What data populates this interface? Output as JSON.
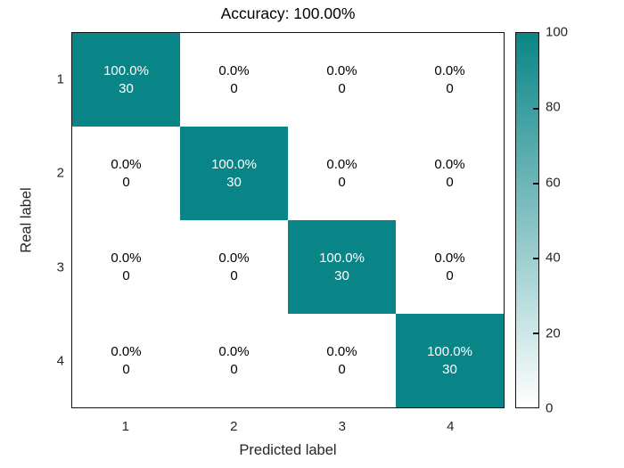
{
  "chart_data": {
    "type": "heatmap",
    "subtype": "confusion-matrix",
    "title": "Accuracy: 100.00%",
    "xlabel": "Predicted label",
    "ylabel": "Real label",
    "x_tick_labels": [
      "1",
      "2",
      "3",
      "4"
    ],
    "y_tick_labels": [
      "1",
      "2",
      "3",
      "4"
    ],
    "percent_matrix": [
      [
        100.0,
        0.0,
        0.0,
        0.0
      ],
      [
        0.0,
        100.0,
        0.0,
        0.0
      ],
      [
        0.0,
        0.0,
        100.0,
        0.0
      ],
      [
        0.0,
        0.0,
        0.0,
        100.0
      ]
    ],
    "count_matrix": [
      [
        30,
        0,
        0,
        0
      ],
      [
        0,
        30,
        0,
        0
      ],
      [
        0,
        0,
        30,
        0
      ],
      [
        0,
        0,
        0,
        30
      ]
    ],
    "colorbar": {
      "min": 0,
      "max": 100,
      "tick_labels": [
        "0",
        "20",
        "40",
        "60",
        "80",
        "100"
      ],
      "ticks": [
        0,
        20,
        40,
        60,
        80,
        100
      ]
    },
    "colors": {
      "high": "#0a8587",
      "low": "#ffffff",
      "border": "#111111",
      "diag_text": "#ffffff",
      "offdiag_text": "#000000"
    },
    "layout": {
      "grid": "off",
      "legend": "none",
      "colorbar_position": "right"
    }
  }
}
